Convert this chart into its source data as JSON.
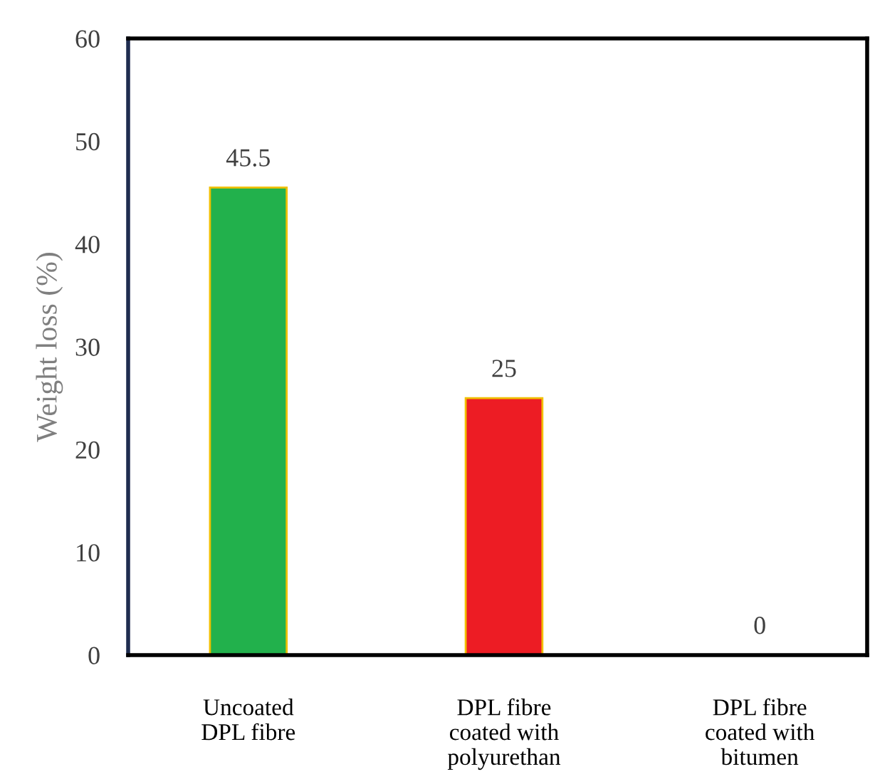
{
  "chart_data": {
    "type": "bar",
    "categories": [
      "Uncoated\nDPL fibre",
      "DPL fibre\ncoated with\npolyurethan",
      "DPL fibre\ncoated with\nbitumen"
    ],
    "values": [
      45.5,
      25,
      0
    ],
    "colors": [
      "#22b14c",
      "#ed1c24",
      null
    ],
    "ylabel": "Weight loss (%)",
    "ylim": [
      0,
      60
    ],
    "yticks": [
      0,
      10,
      20,
      30,
      40,
      50,
      60
    ],
    "data_labels": true,
    "grid": false,
    "legend": false
  }
}
